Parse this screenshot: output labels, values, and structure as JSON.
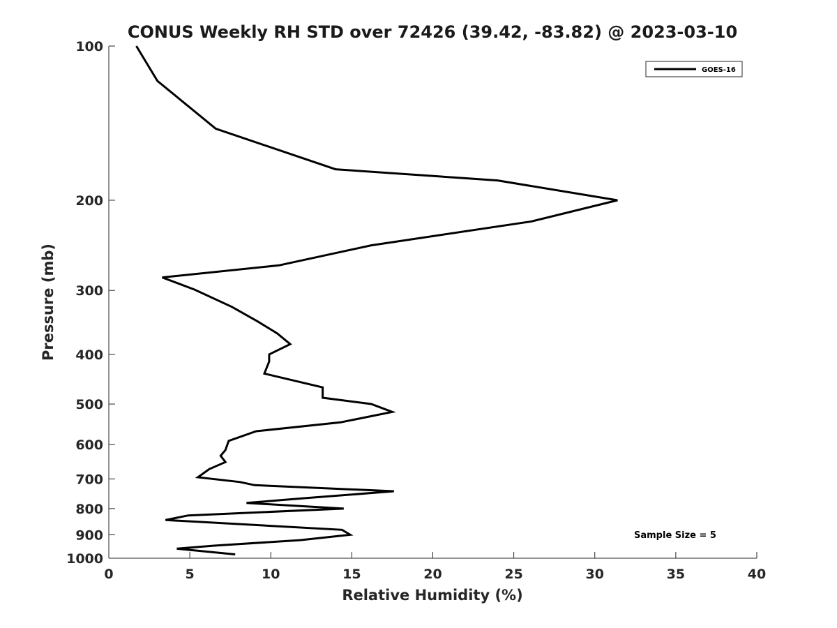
{
  "chart_data": {
    "type": "line",
    "title": "CONUS Weekly RH STD over 72426 (39.42, -83.82) @ 2023-03-10",
    "xlabel": "Relative Humidity (%)",
    "ylabel": "Pressure (mb)",
    "xlim": [
      0,
      40
    ],
    "ylim": [
      100,
      1000
    ],
    "y_scale": "log",
    "y_reversed": true,
    "x_ticks": [
      "0",
      "5",
      "10",
      "15",
      "20",
      "25",
      "30",
      "35",
      "40"
    ],
    "y_ticks": [
      "100",
      "200",
      "300",
      "400",
      "500",
      "600",
      "700",
      "800",
      "900",
      "1000"
    ],
    "grid": false,
    "legend_position": "top-right",
    "annotation": "Sample Size = 5",
    "series": [
      {
        "name": "GOES-16",
        "color": "#000000",
        "x": [
          1.7,
          3.0,
          6.6,
          14.0,
          24.0,
          31.4,
          26.1,
          16.2,
          10.5,
          3.3,
          5.3,
          7.6,
          9.2,
          10.4,
          11.2,
          9.9,
          9.9,
          9.6,
          13.2,
          13.2,
          16.2,
          17.5,
          14.3,
          9.1,
          7.4,
          7.2,
          6.9,
          7.2,
          6.2,
          5.5,
          8.1,
          9.0,
          17.6,
          12.2,
          8.5,
          14.5,
          4.9,
          3.5,
          14.4,
          14.9,
          11.8,
          6.5,
          4.2,
          7.8
        ],
        "y": [
          100,
          117,
          145,
          174,
          183,
          200,
          220,
          245,
          268,
          283,
          299,
          323,
          345,
          364,
          382,
          400,
          413,
          436,
          464,
          486,
          500,
          518,
          543,
          565,
          590,
          615,
          631,
          649,
          670,
          695,
          710,
          720,
          740,
          763,
          780,
          800,
          825,
          842,
          880,
          900,
          922,
          945,
          958,
          983
        ]
      }
    ]
  }
}
